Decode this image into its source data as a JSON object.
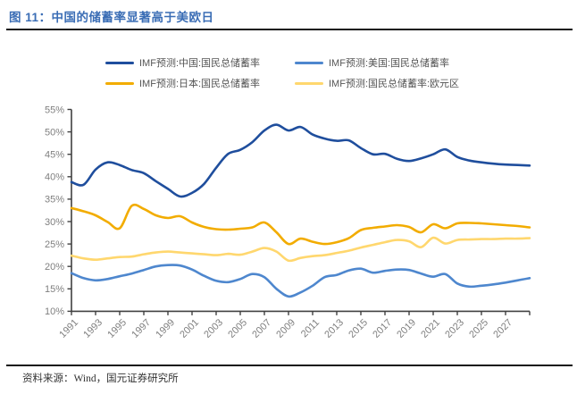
{
  "figure": {
    "title": "图 11：中国的储蓄率显著高于美欧日",
    "source": "资料来源：Wind，国元证券研究所"
  },
  "colors": {
    "title_blue": "#3A6DB5",
    "china": "#1F4E9D",
    "us": "#4E87CE",
    "japan": "#F2AC00",
    "euro": "#FFD76E",
    "axis": "#404040",
    "tick_label": "#7F7F7F",
    "legend_text": "#555555",
    "rule": "#141414"
  },
  "legend": {
    "items": [
      {
        "label": "IMF预测:中国:国民总储蓄率",
        "color_key": "china"
      },
      {
        "label": "IMF预测:美国:国民总储蓄率",
        "color_key": "us"
      },
      {
        "label": "IMF预测:日本:国民总储蓄率",
        "color_key": "japan"
      },
      {
        "label": "IMF预测:国民总储蓄率:欧元区",
        "color_key": "euro"
      }
    ]
  },
  "chart_data": {
    "type": "line",
    "title": "图 11：中国的储蓄率显著高于美欧日",
    "xlabel": "",
    "ylabel": "",
    "xlim": [
      1991,
      2029
    ],
    "ylim": [
      10,
      55
    ],
    "grid": false,
    "legend_position": "top",
    "x": [
      1991,
      1992,
      1993,
      1994,
      1995,
      1996,
      1997,
      1998,
      1999,
      2000,
      2001,
      2002,
      2003,
      2004,
      2005,
      2006,
      2007,
      2008,
      2009,
      2010,
      2011,
      2012,
      2013,
      2014,
      2015,
      2016,
      2017,
      2018,
      2019,
      2020,
      2021,
      2022,
      2023,
      2024,
      2025,
      2026,
      2027,
      2028,
      2029
    ],
    "x_tick_labels": [
      "1991",
      "1993",
      "1995",
      "1997",
      "1999",
      "2001",
      "2003",
      "2005",
      "2007",
      "2009",
      "2011",
      "2013",
      "2015",
      "2017",
      "2019",
      "2021",
      "2023",
      "2025",
      "2027"
    ],
    "y_tick_labels": [
      "10%",
      "15%",
      "20%",
      "25%",
      "30%",
      "35%",
      "40%",
      "45%",
      "50%",
      "55%"
    ],
    "unit": "%",
    "series": [
      {
        "name": "IMF预测:中国:国民总储蓄率",
        "color_key": "china",
        "values": [
          38.8,
          38.2,
          41.6,
          43.2,
          42.6,
          41.5,
          40.8,
          39.0,
          37.3,
          35.6,
          36.4,
          38.4,
          42.0,
          45.1,
          46.0,
          47.7,
          50.3,
          51.6,
          50.3,
          51.1,
          49.4,
          48.5,
          48.0,
          48.1,
          46.4,
          45.0,
          45.1,
          44.0,
          43.5,
          44.1,
          45.0,
          46.1,
          44.4,
          43.6,
          43.2,
          42.9,
          42.7,
          42.6,
          42.5
        ]
      },
      {
        "name": "IMF预测:美国:国民总储蓄率",
        "color_key": "us",
        "values": [
          18.5,
          17.4,
          16.9,
          17.2,
          17.8,
          18.4,
          19.2,
          20.0,
          20.3,
          20.2,
          19.3,
          17.9,
          16.8,
          16.5,
          17.2,
          18.3,
          17.6,
          15.0,
          13.3,
          14.2,
          15.7,
          17.6,
          18.1,
          19.1,
          19.5,
          18.6,
          19.0,
          19.3,
          19.2,
          18.4,
          17.7,
          18.3,
          16.2,
          15.5,
          15.7,
          16.0,
          16.4,
          16.9,
          17.4
        ]
      },
      {
        "name": "IMF预测:日本:国民总储蓄率",
        "color_key": "japan",
        "values": [
          33.0,
          32.3,
          31.4,
          29.9,
          28.5,
          33.5,
          32.8,
          31.4,
          30.8,
          31.2,
          29.8,
          28.8,
          28.3,
          28.2,
          28.4,
          28.7,
          29.8,
          27.6,
          25.0,
          26.2,
          25.5,
          25.0,
          25.4,
          26.3,
          28.1,
          28.6,
          28.9,
          29.2,
          28.8,
          27.6,
          29.4,
          28.5,
          29.6,
          29.7,
          29.6,
          29.4,
          29.2,
          29.0,
          28.7
        ]
      },
      {
        "name": "IMF预测:国民总储蓄率:欧元区",
        "color_key": "euro",
        "values": [
          22.4,
          21.8,
          21.5,
          21.8,
          22.1,
          22.2,
          22.7,
          23.1,
          23.3,
          23.1,
          22.9,
          22.7,
          22.5,
          22.8,
          22.6,
          23.3,
          24.1,
          23.3,
          21.3,
          21.9,
          22.3,
          22.5,
          23.0,
          23.5,
          24.2,
          24.8,
          25.4,
          25.9,
          25.6,
          24.3,
          26.4,
          25.1,
          25.9,
          26.0,
          26.1,
          26.1,
          26.2,
          26.2,
          26.3
        ]
      }
    ]
  }
}
